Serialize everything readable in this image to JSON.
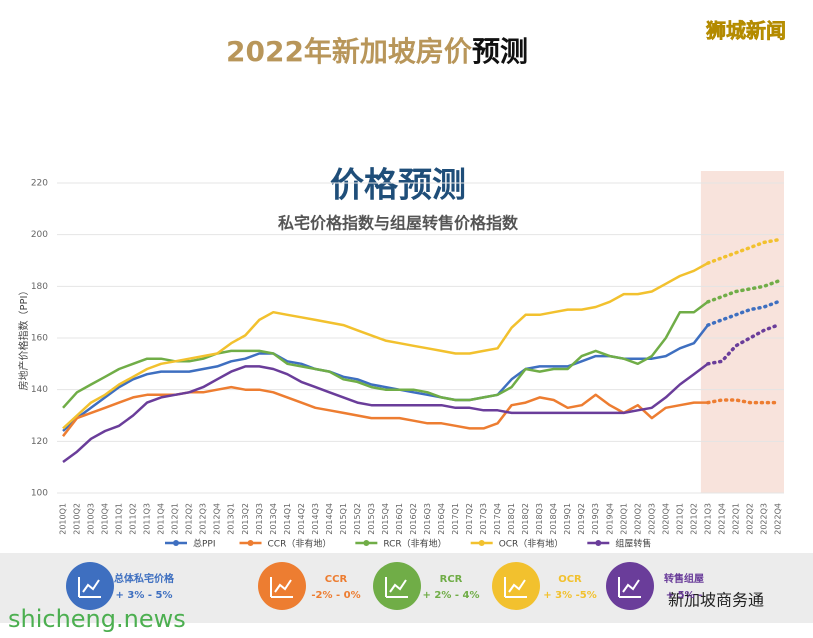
{
  "chart_data": {
    "type": "line",
    "page_title": "2022年新加坡房价",
    "page_title_dark": "预测",
    "watermark": "狮城新闻",
    "title": "价格预测",
    "subtitle": "私宅价格指数与组屋转售价格指数",
    "ylabel": "房地产价格指数（PPI）",
    "categories": [
      "2010Q1",
      "2010Q2",
      "2010Q3",
      "2010Q4",
      "2011Q1",
      "2011Q2",
      "2011Q3",
      "2011Q4",
      "2012Q1",
      "2012Q2",
      "2012Q3",
      "2012Q4",
      "2013Q1",
      "2013Q2",
      "2013Q3",
      "2013Q4",
      "2014Q1",
      "2014Q2",
      "2014Q3",
      "2014Q4",
      "2015Q1",
      "2015Q2",
      "2015Q3",
      "2015Q4",
      "2016Q1",
      "2016Q2",
      "2016Q3",
      "2016Q4",
      "2017Q1",
      "2017Q2",
      "2017Q3",
      "2017Q4",
      "2018Q1",
      "2018Q2",
      "2018Q3",
      "2018Q4",
      "2019Q1",
      "2019Q2",
      "2019Q3",
      "2019Q4",
      "2020Q1",
      "2020Q2",
      "2020Q3",
      "2020Q4",
      "2021Q1",
      "2021Q2",
      "2021Q3",
      "2021Q4",
      "2022Q1",
      "2022Q2",
      "2022Q3",
      "2022Q4"
    ],
    "shaded_from": "2021Q3",
    "ylim": [
      100,
      220
    ],
    "yticks": [
      100,
      120,
      140,
      160,
      180,
      200,
      220
    ],
    "series": [
      {
        "name": "总PPI",
        "color": "#3e6fc0",
        "values": [
          124,
          129,
          133,
          137,
          141,
          144,
          146,
          147,
          147,
          147,
          148,
          149,
          151,
          152,
          154,
          154,
          151,
          150,
          148,
          147,
          145,
          144,
          142,
          141,
          140,
          139,
          138,
          137,
          136,
          136,
          137,
          138,
          144,
          148,
          149,
          149,
          149,
          151,
          153,
          153,
          152,
          152,
          152,
          153,
          156,
          158,
          165,
          167,
          169,
          171,
          172,
          174
        ]
      },
      {
        "name": "CCR（非有地）",
        "color": "#ed7d31",
        "values": [
          122,
          129,
          131,
          133,
          135,
          137,
          138,
          138,
          138,
          139,
          139,
          140,
          141,
          140,
          140,
          139,
          137,
          135,
          133,
          132,
          131,
          130,
          129,
          129,
          129,
          128,
          127,
          127,
          126,
          125,
          125,
          127,
          134,
          135,
          137,
          136,
          133,
          134,
          138,
          134,
          131,
          134,
          129,
          133,
          134,
          135,
          135,
          136,
          136,
          135,
          135,
          135
        ]
      },
      {
        "name": "RCR（非有地）",
        "color": "#70ad47",
        "values": [
          133,
          139,
          142,
          145,
          148,
          150,
          152,
          152,
          151,
          151,
          152,
          154,
          155,
          155,
          155,
          154,
          150,
          149,
          148,
          147,
          144,
          143,
          141,
          140,
          140,
          140,
          139,
          137,
          136,
          136,
          137,
          138,
          141,
          148,
          147,
          148,
          148,
          153,
          155,
          153,
          152,
          150,
          153,
          160,
          170,
          170,
          174,
          176,
          178,
          179,
          180,
          182
        ]
      },
      {
        "name": "OCR（非有地）",
        "color": "#f2c12e",
        "values": [
          125,
          130,
          135,
          138,
          142,
          145,
          148,
          150,
          151,
          152,
          153,
          154,
          158,
          161,
          167,
          170,
          169,
          168,
          167,
          166,
          165,
          163,
          161,
          159,
          158,
          157,
          156,
          155,
          154,
          154,
          155,
          156,
          164,
          169,
          169,
          170,
          171,
          171,
          172,
          174,
          177,
          177,
          178,
          181,
          184,
          186,
          189,
          191,
          193,
          195,
          197,
          198
        ]
      },
      {
        "name": "组屋转售",
        "color": "#6a3d9a",
        "values": [
          112,
          116,
          121,
          124,
          126,
          130,
          135,
          137,
          138,
          139,
          141,
          144,
          147,
          149,
          149,
          148,
          146,
          143,
          141,
          139,
          137,
          135,
          134,
          134,
          134,
          134,
          134,
          134,
          133,
          133,
          132,
          132,
          131,
          131,
          131,
          131,
          131,
          131,
          131,
          131,
          131,
          132,
          133,
          137,
          142,
          146,
          150,
          151,
          157,
          160,
          163,
          165
        ]
      }
    ],
    "forecasts": [
      {
        "name": "总体私宅价格",
        "range": "+ 3% - 5%",
        "color": "#3e6fc0"
      },
      {
        "name": "CCR",
        "range": "-2% - 0%",
        "color": "#ed7d31"
      },
      {
        "name": "RCR",
        "range": "+ 2% - 4%",
        "color": "#70ad47"
      },
      {
        "name": "OCR",
        "range": "+ 3% -5%",
        "color": "#f2c12e"
      },
      {
        "name": "转售组屋",
        "range": "+ 5% -",
        "color": "#6a3d9a"
      }
    ],
    "footer_left": "shicheng.news",
    "footer_right": "新加坡商务通"
  }
}
